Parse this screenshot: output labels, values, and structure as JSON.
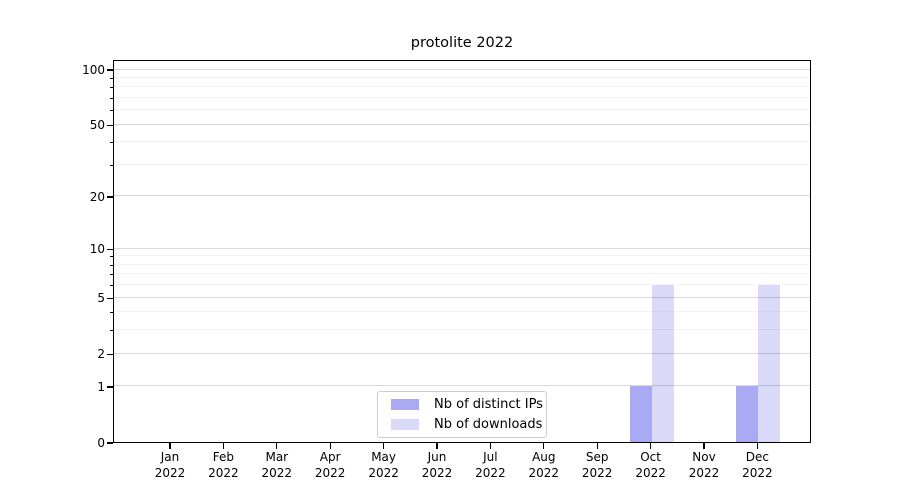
{
  "chart_data": {
    "type": "bar",
    "title": "protolite 2022",
    "categories": [
      "Jan 2022",
      "Feb 2022",
      "Mar 2022",
      "Apr 2022",
      "May 2022",
      "Jun 2022",
      "Jul 2022",
      "Aug 2022",
      "Sep 2022",
      "Oct 2022",
      "Nov 2022",
      "Dec 2022"
    ],
    "series": [
      {
        "name": "Nb of distinct IPs",
        "key": "distinct-ips",
        "values": [
          0,
          0,
          0,
          0,
          0,
          0,
          0,
          0,
          0,
          1,
          0,
          1
        ]
      },
      {
        "name": "Nb of downloads",
        "key": "downloads",
        "values": [
          0,
          0,
          0,
          0,
          0,
          0,
          0,
          0,
          0,
          6,
          0,
          6
        ]
      }
    ],
    "xlabel": "",
    "ylabel": "",
    "ylim": [
      0,
      100
    ],
    "y_scale": "log1p",
    "y_ticks": [
      0,
      1,
      2,
      5,
      10,
      20,
      50,
      100
    ],
    "y_minor_ticks": [
      3,
      4,
      6,
      7,
      8,
      9,
      30,
      40,
      60,
      70,
      80,
      90
    ],
    "grid": "on",
    "legend_position": "lower center"
  },
  "colors": {
    "bar_distinct_ips": "rgba(9,9,224,0.35)",
    "bar_downloads": "rgba(8,8,208,0.15)",
    "grid_major": "#d8d8d8",
    "grid_minor": "#f2f2f2",
    "axis": "#000000",
    "legend_border": "#cccccc"
  }
}
